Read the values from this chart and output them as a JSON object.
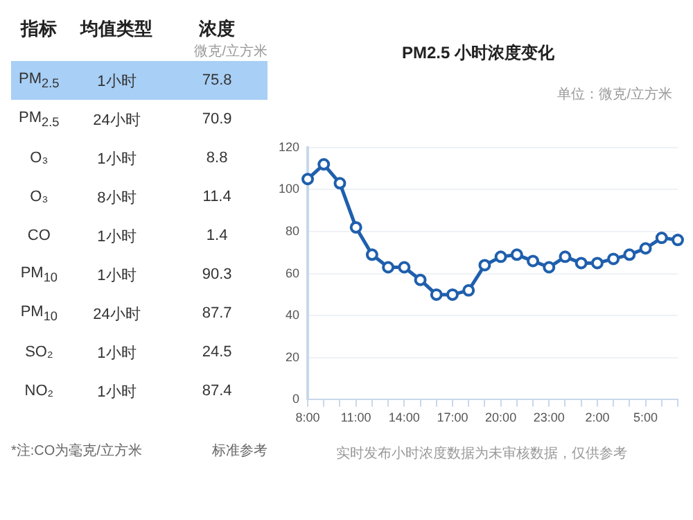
{
  "chart_data": [
    {
      "type": "other",
      "annotations": [
        "指标",
        "均值类型",
        "浓度",
        "微克/立方米",
        "PM$_{2.5}$",
        "1小时",
        "75.8",
        "PM$_{2.5}$",
        "24小时",
        "70.9",
        "O₃",
        "1小时",
        "8.8",
        "O₃",
        "8小时",
        "11.4",
        "CO",
        "1小时",
        "1.4",
        "PM$_{10}$",
        "1小时",
        "90.3",
        "PM$_{10}$",
        "24小时",
        "87.7",
        "SO₂",
        "1小时",
        "24.5",
        "NO₂",
        "1小时",
        "87.4",
        "*注:CO为毫克/立方米",
        "标准参考"
      ]
    },
    {
      "type": "line",
      "title": "PM2.5 小时浓度变化",
      "subtitle": "单位：微克/立方米",
      "annotations": [
        "实时发布小时浓度数据为未审核数据，仅供参考"
      ],
      "categories": [
        "8:00",
        null,
        null,
        "11:00",
        null,
        null,
        "14:00",
        null,
        null,
        "17:00",
        null,
        null,
        "20:00",
        null,
        null,
        "23:00",
        null,
        null,
        "2:00",
        null,
        null,
        "5:00",
        null,
        null
      ],
      "series": [
        {
          "color": "#1f5fad",
          "values": [
            105,
            112,
            103,
            82,
            69,
            63,
            63,
            57,
            50,
            50,
            52,
            64,
            68,
            69,
            66,
            63,
            68,
            65,
            65,
            67,
            69,
            72,
            77,
            76
          ]
        }
      ],
      "ylim": [
        0,
        120
      ],
      "yticks": [
        0,
        20,
        40,
        60,
        80,
        100,
        120
      ],
      "grid": "y",
      "legend": false,
      "marker": "circle",
      "line_style": "solid"
    }
  ]
}
